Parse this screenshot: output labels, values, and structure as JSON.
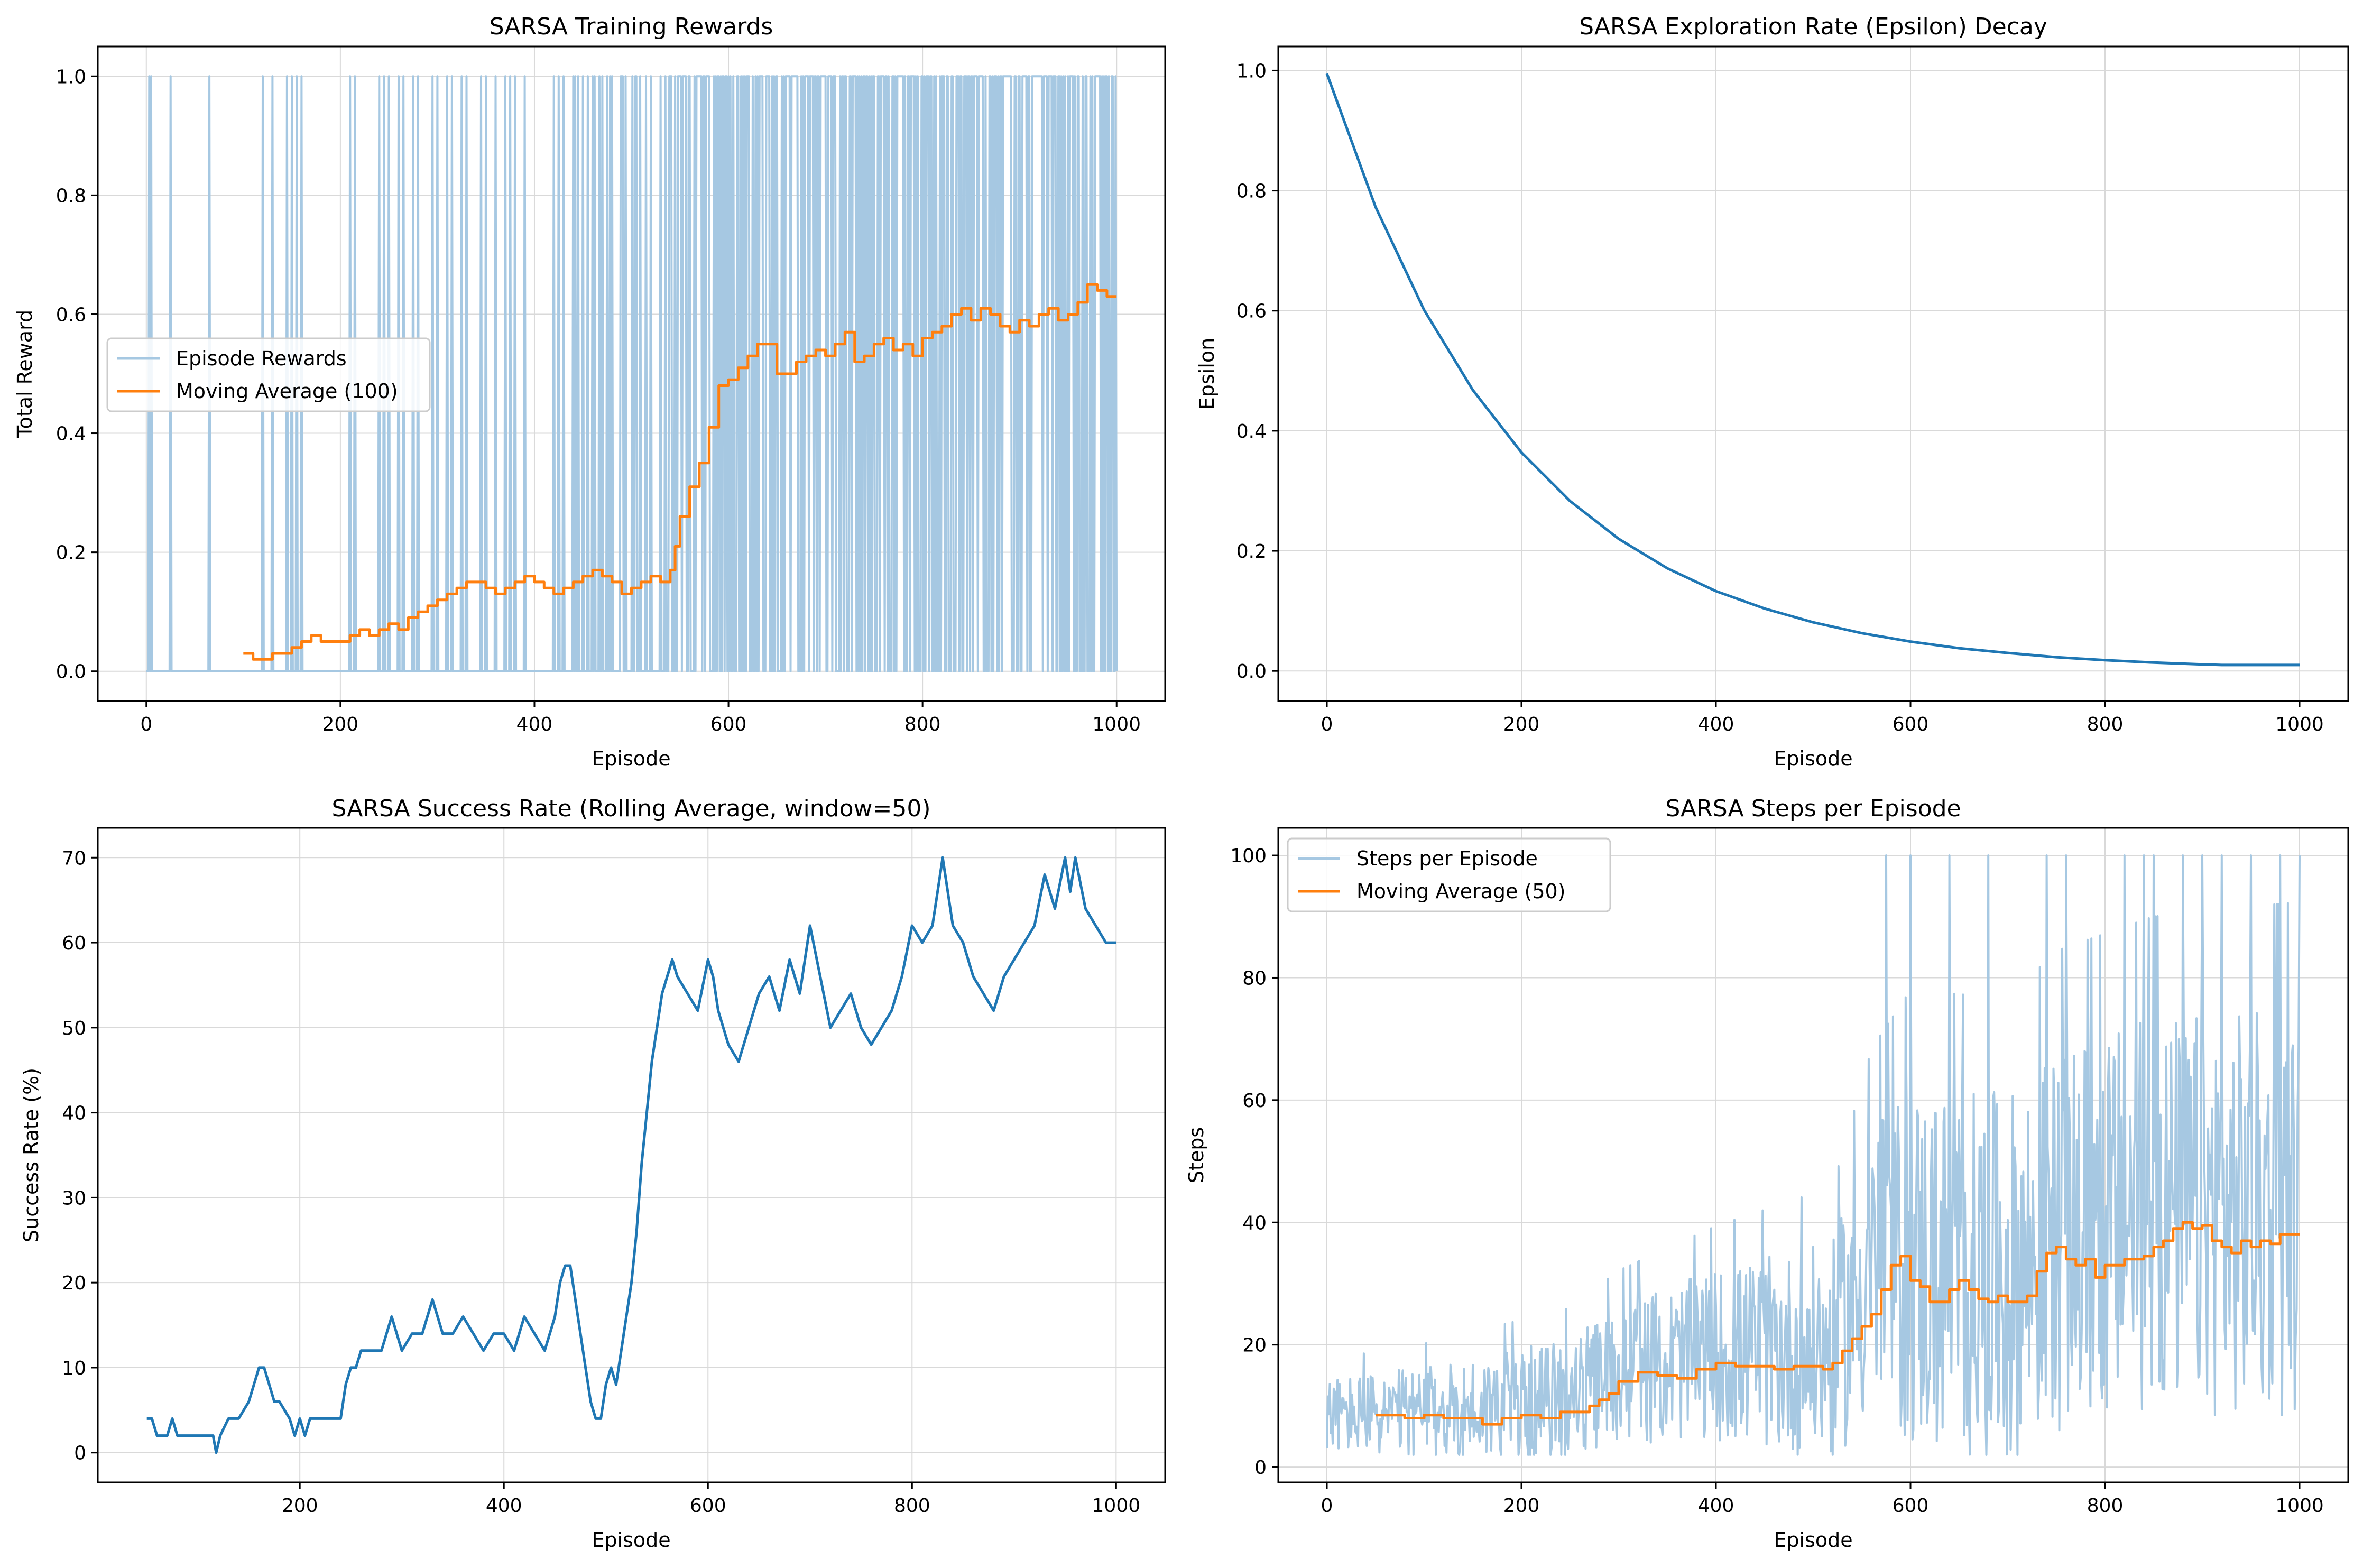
{
  "colors": {
    "blue": "#1f77b4",
    "orange": "#ff7f0e",
    "light_blue": "#a6c8e2",
    "grid": "#d9d9d9"
  },
  "chart_data": [
    {
      "type": "line",
      "title": "SARSA Training Rewards",
      "xlabel": "Episode",
      "ylabel": "Total Reward",
      "xlim": [
        -50,
        1050
      ],
      "ylim": [
        -0.05,
        1.05
      ],
      "xticks": [
        0,
        200,
        400,
        600,
        800,
        1000
      ],
      "yticks": [
        0.0,
        0.2,
        0.4,
        0.6,
        0.8,
        1.0
      ],
      "xtick_labels": [
        "0",
        "200",
        "400",
        "600",
        "800",
        "1000"
      ],
      "ytick_labels": [
        "0.0",
        "0.2",
        "0.4",
        "0.6",
        "0.8",
        "1.0"
      ],
      "grid": true,
      "legend": "center-left",
      "series": [
        {
          "name": "Episode Rewards",
          "style": "light",
          "kind": "binary-spikes",
          "x_spikes": [
            3,
            5,
            25,
            65,
            120,
            130,
            145,
            150,
            155,
            160,
            210,
            215,
            240,
            245,
            250,
            260,
            265,
            275,
            280,
            295,
            300,
            310,
            315,
            325,
            330,
            345,
            350,
            360,
            370,
            375,
            380,
            390,
            420,
            425,
            430,
            440,
            445,
            450,
            455,
            460,
            470,
            475,
            480,
            490,
            505,
            515,
            520,
            530,
            535,
            540,
            545,
            550,
            555,
            560,
            565,
            570,
            575,
            580,
            585,
            590,
            595,
            600,
            605,
            610,
            615,
            620,
            625,
            630,
            635,
            640,
            645,
            650,
            655,
            660,
            665,
            670,
            675,
            680,
            685,
            690,
            695,
            700,
            705,
            710,
            715,
            720,
            725,
            730,
            735,
            740,
            745,
            750,
            755,
            760,
            765,
            770,
            775,
            780,
            785,
            790,
            795,
            800,
            805,
            820,
            825,
            830,
            835,
            840,
            845,
            850,
            855,
            860,
            865,
            870,
            875,
            880,
            885,
            890,
            895,
            900,
            905,
            910,
            915,
            920,
            925,
            930,
            935,
            940,
            945,
            950,
            955,
            960,
            965,
            975,
            980,
            985,
            990,
            995
          ],
          "x_range": [
            0,
            1000
          ]
        },
        {
          "name": "Moving Average (100)",
          "style": "orange",
          "x": [
            100,
            110,
            120,
            130,
            140,
            150,
            160,
            170,
            180,
            200,
            210,
            220,
            230,
            240,
            250,
            260,
            270,
            280,
            290,
            300,
            310,
            320,
            330,
            340,
            350,
            360,
            370,
            380,
            390,
            400,
            410,
            420,
            430,
            440,
            450,
            460,
            470,
            480,
            490,
            500,
            510,
            520,
            530,
            540,
            545,
            550,
            560,
            570,
            580,
            590,
            600,
            610,
            620,
            630,
            640,
            650,
            660,
            670,
            680,
            690,
            700,
            710,
            720,
            730,
            740,
            750,
            760,
            770,
            780,
            790,
            800,
            810,
            820,
            830,
            840,
            850,
            860,
            870,
            880,
            890,
            900,
            910,
            920,
            930,
            940,
            950,
            960,
            970,
            980,
            990,
            1000
          ],
          "y": [
            0.03,
            0.02,
            0.02,
            0.03,
            0.03,
            0.04,
            0.05,
            0.06,
            0.05,
            0.05,
            0.06,
            0.07,
            0.06,
            0.07,
            0.08,
            0.07,
            0.09,
            0.1,
            0.11,
            0.12,
            0.13,
            0.14,
            0.15,
            0.15,
            0.14,
            0.13,
            0.14,
            0.15,
            0.16,
            0.15,
            0.14,
            0.13,
            0.14,
            0.15,
            0.16,
            0.17,
            0.16,
            0.15,
            0.13,
            0.14,
            0.15,
            0.16,
            0.15,
            0.17,
            0.21,
            0.26,
            0.31,
            0.35,
            0.41,
            0.48,
            0.49,
            0.51,
            0.53,
            0.55,
            0.55,
            0.5,
            0.5,
            0.52,
            0.53,
            0.54,
            0.53,
            0.55,
            0.57,
            0.52,
            0.53,
            0.55,
            0.56,
            0.54,
            0.55,
            0.53,
            0.56,
            0.57,
            0.58,
            0.6,
            0.61,
            0.59,
            0.61,
            0.6,
            0.58,
            0.57,
            0.59,
            0.58,
            0.6,
            0.61,
            0.59,
            0.6,
            0.62,
            0.65,
            0.64,
            0.63,
            0.63
          ]
        }
      ]
    },
    {
      "type": "line",
      "title": "SARSA Exploration Rate (Epsilon) Decay",
      "xlabel": "Episode",
      "ylabel": "Epsilon",
      "xlim": [
        -50,
        1050
      ],
      "ylim": [
        -0.05,
        1.04
      ],
      "xticks": [
        0,
        200,
        400,
        600,
        800,
        1000
      ],
      "yticks": [
        0.0,
        0.2,
        0.4,
        0.6,
        0.8,
        1.0
      ],
      "xtick_labels": [
        "0",
        "200",
        "400",
        "600",
        "800",
        "1000"
      ],
      "ytick_labels": [
        "0.0",
        "0.2",
        "0.4",
        "0.6",
        "0.8",
        "1.0"
      ],
      "grid": true,
      "series": [
        {
          "style": "blue",
          "x": [
            0,
            50,
            100,
            150,
            200,
            250,
            300,
            350,
            400,
            450,
            500,
            550,
            600,
            650,
            700,
            750,
            800,
            850,
            900,
            920,
            950,
            1000
          ],
          "y": [
            0.995,
            0.773,
            0.601,
            0.468,
            0.364,
            0.283,
            0.22,
            0.171,
            0.133,
            0.104,
            0.081,
            0.063,
            0.049,
            0.038,
            0.03,
            0.023,
            0.018,
            0.014,
            0.011,
            0.01,
            0.01,
            0.01
          ]
        }
      ]
    },
    {
      "type": "line",
      "title": "SARSA Success Rate (Rolling Average, window=50)",
      "xlabel": "Episode",
      "ylabel": "Success Rate (%)",
      "xlim": [
        2,
        1048
      ],
      "ylim": [
        -3.5,
        73.5
      ],
      "xticks": [
        200,
        400,
        600,
        800,
        1000
      ],
      "yticks": [
        0,
        10,
        20,
        30,
        40,
        50,
        60,
        70
      ],
      "xtick_labels": [
        "200",
        "400",
        "600",
        "800",
        "1000"
      ],
      "ytick_labels": [
        "0",
        "10",
        "20",
        "30",
        "40",
        "50",
        "60",
        "70"
      ],
      "grid": true,
      "series": [
        {
          "style": "blue",
          "x": [
            50,
            55,
            60,
            70,
            75,
            80,
            90,
            100,
            110,
            115,
            118,
            122,
            130,
            140,
            150,
            155,
            160,
            165,
            170,
            175,
            180,
            190,
            195,
            200,
            205,
            210,
            220,
            230,
            240,
            245,
            250,
            255,
            260,
            270,
            280,
            285,
            290,
            300,
            310,
            320,
            330,
            335,
            340,
            350,
            360,
            370,
            380,
            390,
            400,
            410,
            420,
            430,
            440,
            450,
            455,
            460,
            465,
            470,
            475,
            480,
            485,
            490,
            495,
            500,
            505,
            510,
            515,
            520,
            525,
            530,
            535,
            540,
            545,
            550,
            555,
            560,
            565,
            570,
            580,
            590,
            600,
            605,
            610,
            620,
            630,
            640,
            650,
            660,
            670,
            680,
            690,
            700,
            710,
            720,
            730,
            740,
            750,
            760,
            770,
            780,
            790,
            800,
            810,
            820,
            825,
            830,
            840,
            850,
            860,
            870,
            880,
            890,
            900,
            910,
            920,
            930,
            940,
            950,
            955,
            960,
            970,
            980,
            990,
            1000
          ],
          "y": [
            4,
            4,
            2,
            2,
            4,
            2,
            2,
            2,
            2,
            2,
            0,
            2,
            4,
            4,
            6,
            8,
            10,
            10,
            8,
            6,
            6,
            4,
            2,
            4,
            2,
            4,
            4,
            4,
            4,
            8,
            10,
            10,
            12,
            12,
            12,
            14,
            16,
            12,
            14,
            14,
            18,
            16,
            14,
            14,
            16,
            14,
            12,
            14,
            14,
            12,
            16,
            14,
            12,
            16,
            20,
            22,
            22,
            18,
            14,
            10,
            6,
            4,
            4,
            8,
            10,
            8,
            12,
            16,
            20,
            26,
            34,
            40,
            46,
            50,
            54,
            56,
            58,
            56,
            54,
            52,
            58,
            56,
            52,
            48,
            46,
            50,
            54,
            56,
            52,
            58,
            54,
            62,
            56,
            50,
            52,
            54,
            50,
            48,
            50,
            52,
            56,
            62,
            60,
            62,
            66,
            70,
            62,
            60,
            56,
            54,
            52,
            56,
            58,
            60,
            62,
            68,
            64,
            70,
            66,
            70,
            64,
            62,
            60,
            60
          ]
        }
      ]
    },
    {
      "type": "line",
      "title": "SARSA Steps per Episode",
      "xlabel": "Episode",
      "ylabel": "Steps",
      "xlim": [
        -50,
        1050
      ],
      "ylim": [
        -2.5,
        104.5
      ],
      "xticks": [
        0,
        200,
        400,
        600,
        800,
        1000
      ],
      "yticks": [
        0,
        20,
        40,
        60,
        80,
        100
      ],
      "xtick_labels": [
        "0",
        "200",
        "400",
        "600",
        "800",
        "1000"
      ],
      "ytick_labels": [
        "0",
        "20",
        "40",
        "60",
        "80",
        "100"
      ],
      "grid": true,
      "legend": "top-left",
      "series": [
        {
          "name": "Steps per Episode",
          "style": "light",
          "kind": "noisy",
          "x_range": [
            0,
            1000
          ],
          "center": [
            [
              0,
              8
            ],
            [
              100,
              8
            ],
            [
              250,
              10
            ],
            [
              300,
              14
            ],
            [
              400,
              17
            ],
            [
              520,
              17
            ],
            [
              560,
              30
            ],
            [
              600,
              30
            ],
            [
              700,
              27
            ],
            [
              750,
              34
            ],
            [
              850,
              38
            ],
            [
              1000,
              38
            ]
          ],
          "spread": [
            [
              0,
              6
            ],
            [
              250,
              10
            ],
            [
              400,
              14
            ],
            [
              520,
              18
            ],
            [
              600,
              30
            ],
            [
              1000,
              34
            ]
          ],
          "peaks_x": [
            575,
            600,
            640,
            680,
            740,
            760,
            820,
            840,
            850,
            880,
            900,
            920,
            950,
            980,
            1000
          ],
          "peaks_y": 100
        },
        {
          "name": "Moving Average (50)",
          "style": "orange",
          "x": [
            50,
            60,
            80,
            100,
            120,
            140,
            160,
            180,
            200,
            220,
            240,
            260,
            270,
            280,
            290,
            300,
            320,
            340,
            360,
            380,
            400,
            420,
            440,
            460,
            480,
            500,
            510,
            520,
            530,
            540,
            550,
            560,
            570,
            580,
            590,
            600,
            610,
            620,
            630,
            640,
            650,
            660,
            670,
            680,
            690,
            700,
            710,
            720,
            730,
            740,
            750,
            760,
            770,
            780,
            790,
            800,
            820,
            840,
            850,
            860,
            870,
            880,
            890,
            900,
            910,
            920,
            930,
            940,
            950,
            960,
            970,
            980,
            990,
            1000
          ],
          "y": [
            8.5,
            8.5,
            8,
            8.5,
            8,
            8,
            7,
            8,
            8.5,
            8,
            9,
            9,
            10,
            11,
            12,
            14,
            15.5,
            15,
            14.5,
            16,
            17,
            16.5,
            16.5,
            16,
            16.5,
            16.5,
            16,
            17,
            19,
            21,
            23,
            25,
            29,
            33,
            34.5,
            30.5,
            29.5,
            27,
            27,
            29,
            30.5,
            29,
            27.5,
            27,
            28,
            27,
            27,
            28,
            32,
            35,
            36,
            34,
            33,
            34,
            31,
            33,
            34,
            34.5,
            36,
            37,
            39,
            40,
            39,
            39.5,
            37,
            36,
            35,
            37,
            36,
            37,
            36.5,
            38,
            38,
            38
          ]
        }
      ]
    }
  ]
}
